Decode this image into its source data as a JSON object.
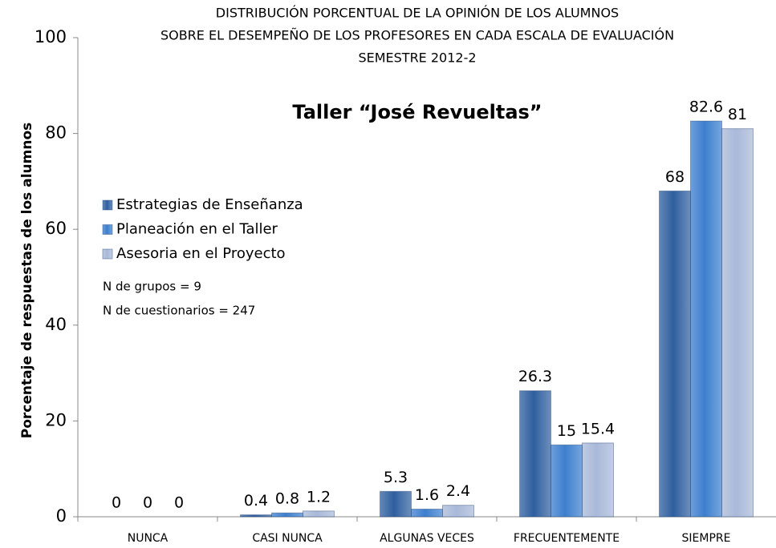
{
  "chart_data": {
    "type": "bar",
    "title": [
      "DISTRIBUCIÓN PORCENTUAL DE LA OPINIÓN DE LOS ALUMNOS",
      "SOBRE EL DESEMPEÑO DE LOS PROFESORES EN CADA ESCALA DE EVALUACIÓN",
      "SEMESTRE 2012-2"
    ],
    "subtitle": "Taller “José Revueltas”",
    "y_label": "Porcentaje de respuestas de los alumnos",
    "annotations": [
      "N de grupos = 9",
      "N de cuestionarios = 247"
    ],
    "categories": [
      "NUNCA",
      "CASI NUNCA",
      "ALGUNAS VECES",
      "FRECUENTEMENTE",
      "SIEMPRE"
    ],
    "series": [
      {
        "name": "Estrategias de Enseñanza",
        "color": "#2f5f9f",
        "values": [
          0,
          0.4,
          5.3,
          26.3,
          68
        ]
      },
      {
        "name": "Planeación en el Taller",
        "color": "#3d7fce",
        "values": [
          0,
          0.8,
          1.6,
          15,
          82.6
        ]
      },
      {
        "name": "Asesoria en el Proyecto",
        "color": "#a9b9d9",
        "values": [
          0,
          1.2,
          2.4,
          15.4,
          81
        ]
      }
    ],
    "ylim": [
      0,
      100
    ],
    "yticks": [
      0,
      20,
      40,
      60,
      80,
      100
    ],
    "legend": "left"
  }
}
